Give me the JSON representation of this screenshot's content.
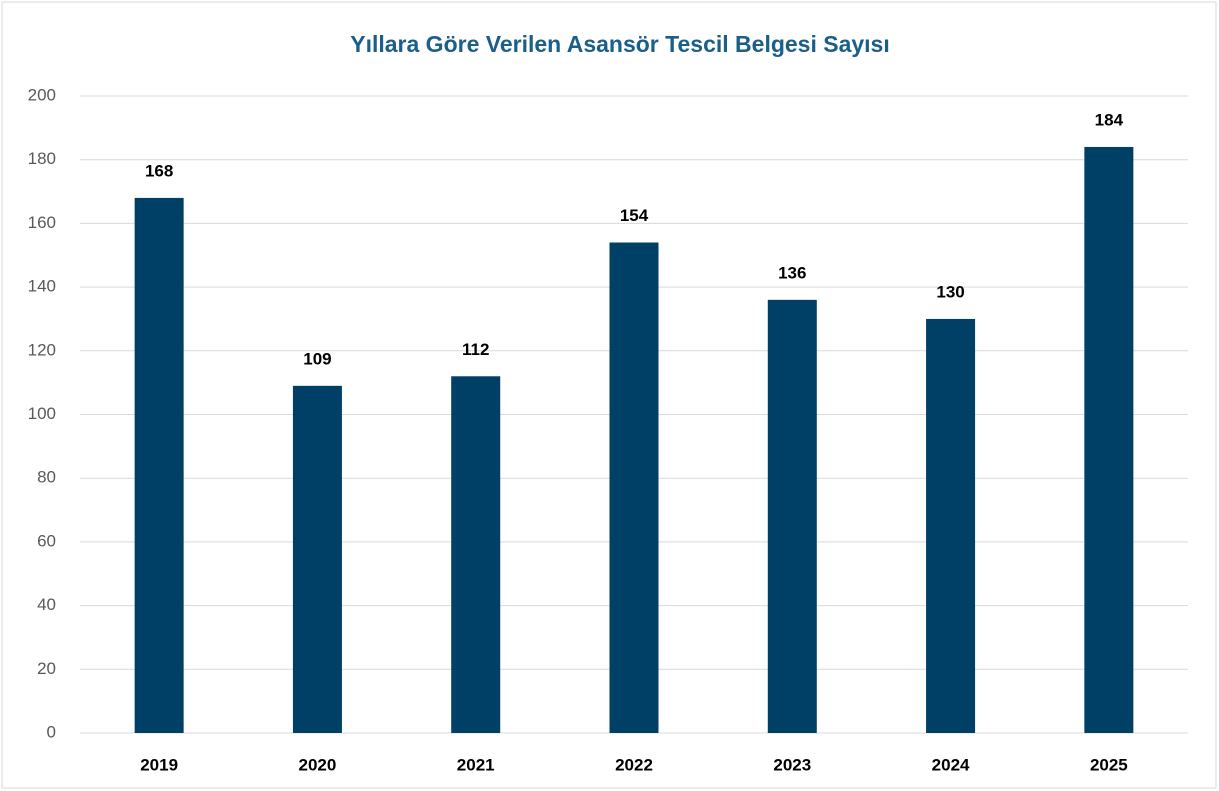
{
  "chart_data": {
    "type": "bar",
    "title": "Yıllara Göre Verilen Asansör Tescil Belgesi Sayısı",
    "categories": [
      "2019",
      "2020",
      "2021",
      "2022",
      "2023",
      "2024",
      "2025"
    ],
    "values": [
      168,
      109,
      112,
      154,
      136,
      130,
      184
    ],
    "color": "#003f66",
    "ylim": [
      0,
      200
    ],
    "yticks": [
      0,
      20,
      40,
      60,
      80,
      100,
      120,
      140,
      160,
      180,
      200
    ],
    "grid": true
  }
}
